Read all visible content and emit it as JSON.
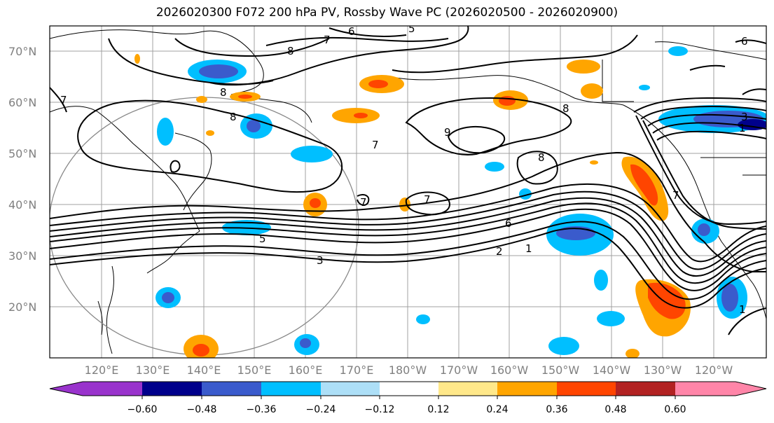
{
  "title": "2026020300 F072 200 hPa PV, Rossby Wave PC (2026020500 - 2026020900)",
  "map": {
    "lat_labels": [
      "70°N",
      "60°N",
      "50°N",
      "40°N",
      "30°N",
      "20°N"
    ],
    "lon_labels": [
      "120°E",
      "130°E",
      "140°E",
      "150°E",
      "160°E",
      "170°E",
      "180°W",
      "170°W",
      "160°W",
      "150°W",
      "140°W",
      "130°W",
      "120°W"
    ],
    "pv_contour_labels": [
      "7",
      "6",
      "5",
      "8",
      "7",
      "8",
      "8",
      "8",
      "9",
      "8",
      "7",
      "7",
      "6",
      "5",
      "3",
      "2",
      "1",
      "6",
      "7",
      "1",
      "3",
      "1",
      "7"
    ]
  },
  "colorbar": {
    "tick_labels": [
      "−0.60",
      "−0.48",
      "−0.36",
      "−0.24",
      "−0.12",
      "0.12",
      "0.24",
      "0.36",
      "0.48",
      "0.60"
    ],
    "colors": [
      "#9933CC",
      "#00008B",
      "#3A5BCC",
      "#00BFFF",
      "#ADDFF7",
      "#FFFFFF",
      "#FFE88A",
      "#FFA500",
      "#FF4500",
      "#B22222",
      "#FF85A8"
    ]
  }
}
